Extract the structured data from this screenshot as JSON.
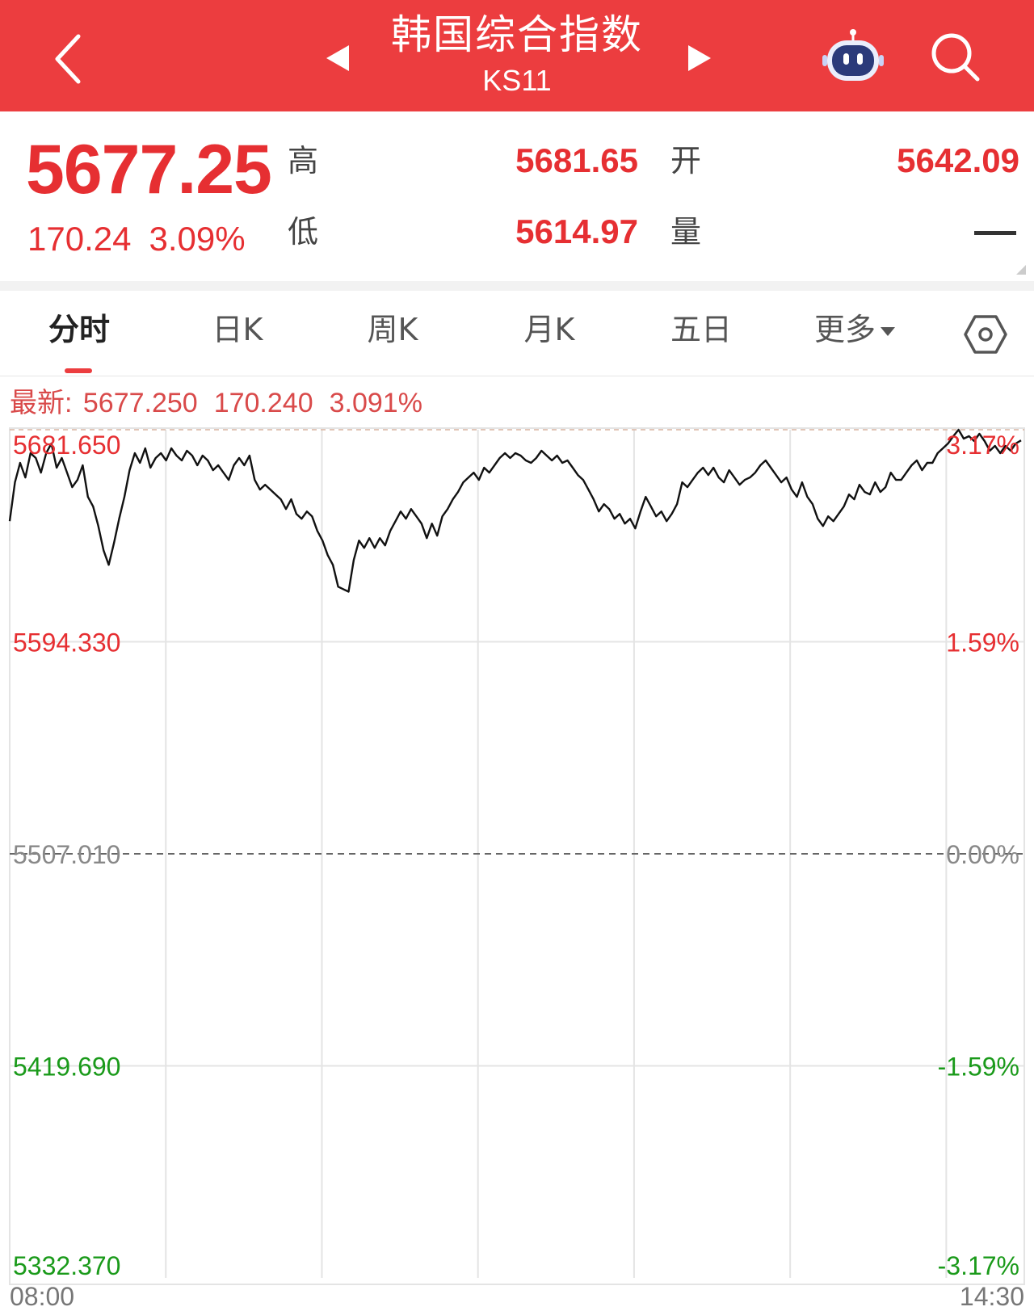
{
  "header": {
    "title": "韩国综合指数",
    "code": "KS11",
    "icons": [
      "back-arrow-icon",
      "prev-triangle-icon",
      "next-triangle-icon",
      "robot-assistant-icon",
      "search-icon"
    ]
  },
  "quote": {
    "price": "5677.25",
    "change": "170.24",
    "change_pct": "3.09%",
    "high_label": "高",
    "high": "5681.65",
    "low_label": "低",
    "low": "5614.97",
    "open_label": "开",
    "open": "5642.09",
    "volume_label": "量",
    "volume": "--"
  },
  "tabs": [
    {
      "label": "分时",
      "active": true
    },
    {
      "label": "日K",
      "active": false
    },
    {
      "label": "周K",
      "active": false
    },
    {
      "label": "月K",
      "active": false
    },
    {
      "label": "五日",
      "active": false
    },
    {
      "label": "更多",
      "active": false
    }
  ],
  "latest": {
    "label": "最新: 5677.250",
    "change": "170.240",
    "pct": "3.091%"
  },
  "colors": {
    "header_bg": "#ec3d3f",
    "up": "#e62f32",
    "down": "#1a9a1a",
    "line": "#111111",
    "grid": "#e4e4e4"
  },
  "chart_data": {
    "type": "line",
    "title": "",
    "xlabel": "",
    "ylabel": "",
    "x_ticks": [
      "08:00",
      "14:30"
    ],
    "y_ticks_left": [
      "5681.650",
      "5594.330",
      "5507.010",
      "5419.690",
      "5332.370"
    ],
    "y_ticks_right": [
      "3.17%",
      "1.59%",
      "0.00%",
      "-1.59%",
      "-3.17%"
    ],
    "ylim": [
      5332.37,
      5681.65
    ],
    "reference": 5507.01,
    "grid": true,
    "series": [
      {
        "values": [
          5644,
          5660,
          5668,
          5662,
          5672,
          5670,
          5664,
          5672,
          5676,
          5666,
          5670,
          5664,
          5658,
          5661,
          5667,
          5654,
          5650,
          5642,
          5632,
          5626,
          5635,
          5645,
          5654,
          5665,
          5672,
          5668,
          5674,
          5666,
          5670,
          5672,
          5669,
          5674,
          5671,
          5669,
          5673,
          5671,
          5667,
          5671,
          5669,
          5665,
          5667,
          5664,
          5661,
          5667,
          5670,
          5667,
          5671,
          5661,
          5657,
          5659,
          5657,
          5655,
          5653,
          5649,
          5653,
          5647,
          5645,
          5648,
          5646,
          5640,
          5636,
          5630,
          5626,
          5617,
          5616,
          5614.97,
          5628,
          5636,
          5633,
          5637,
          5633,
          5637,
          5634,
          5640,
          5644,
          5648,
          5645,
          5649,
          5646,
          5643,
          5637,
          5643,
          5638,
          5646,
          5649,
          5653,
          5656,
          5660,
          5662,
          5664,
          5661,
          5666,
          5664,
          5667,
          5670,
          5672,
          5670,
          5672,
          5671,
          5669,
          5668,
          5670,
          5673,
          5671,
          5669,
          5671,
          5668,
          5669,
          5666,
          5663,
          5661,
          5657,
          5653,
          5648,
          5651,
          5649,
          5645,
          5647,
          5643,
          5645,
          5641,
          5648,
          5654,
          5650,
          5646,
          5648,
          5644,
          5647,
          5651,
          5660,
          5658,
          5661,
          5664,
          5666,
          5663,
          5666,
          5662,
          5660,
          5665,
          5662,
          5659,
          5661,
          5662,
          5664,
          5667,
          5669,
          5666,
          5663,
          5660,
          5662,
          5657,
          5654,
          5660,
          5654,
          5651,
          5645,
          5642,
          5646,
          5644,
          5647,
          5650,
          5655,
          5653,
          5659,
          5656,
          5655,
          5660,
          5656,
          5658,
          5664,
          5661,
          5661,
          5664,
          5667,
          5669,
          5665,
          5668,
          5668,
          5672,
          5674,
          5676,
          5679,
          5681.65,
          5678,
          5679,
          5677,
          5680,
          5677,
          5673,
          5675,
          5672,
          5675,
          5673,
          5676,
          5677.25
        ]
      }
    ]
  }
}
